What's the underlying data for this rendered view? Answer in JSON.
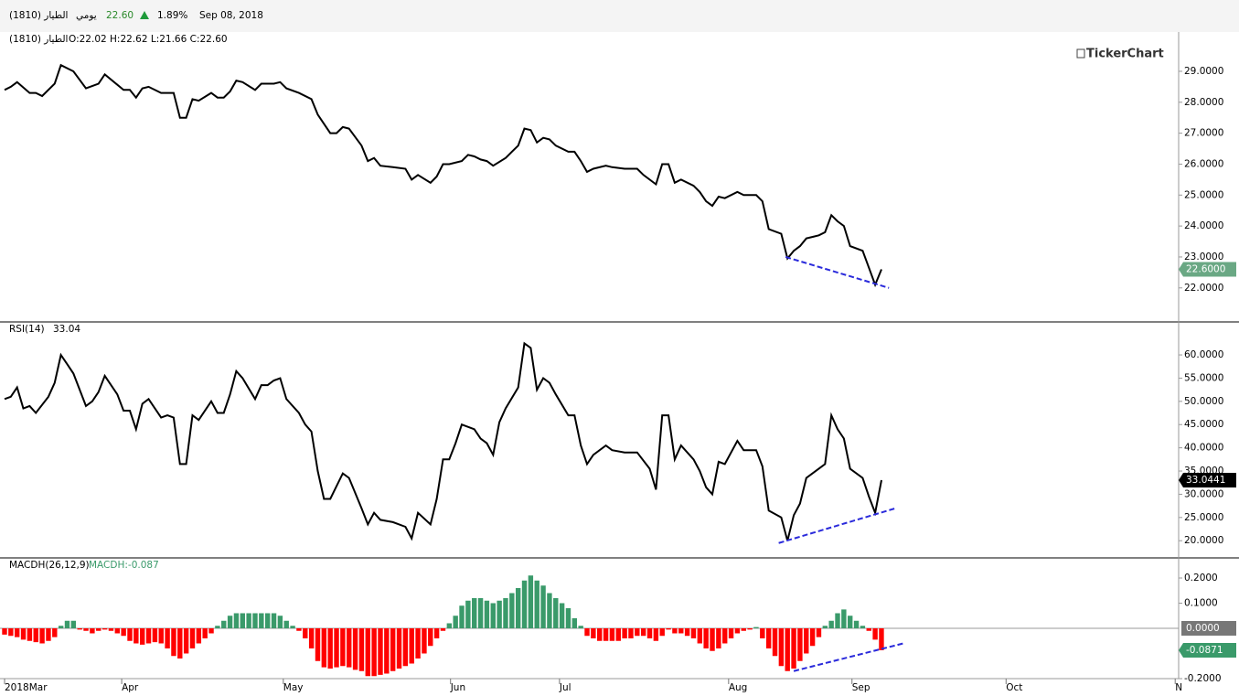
{
  "header": {
    "symbol": "الطيار (1810)",
    "period": "يومي",
    "last": "22.60",
    "change": "1.89%",
    "date": "Sep 08, 2018"
  },
  "watermark": "TickerChart",
  "chart_data": [
    {
      "type": "line",
      "title": "الطيار (1810)",
      "reading": "O:22.02 H:22.62 L:21.66 C:22.60",
      "x": [
        0,
        1,
        2,
        4,
        5,
        6,
        8,
        9,
        11,
        13,
        15,
        16,
        19,
        20,
        21,
        22,
        23,
        25,
        27,
        28,
        29,
        30,
        31,
        33,
        34,
        35,
        36,
        37,
        38,
        40,
        41,
        43,
        44,
        45,
        47,
        49,
        50,
        52,
        53,
        54,
        55,
        57,
        58,
        59,
        60,
        62,
        64,
        65,
        66,
        68,
        69,
        70,
        71,
        73,
        74,
        75,
        76,
        77,
        78,
        80,
        81,
        82,
        83,
        84,
        85,
        86,
        87,
        88,
        90,
        91,
        92,
        93,
        94,
        96,
        97,
        99,
        101,
        102,
        104,
        105,
        106,
        107,
        108,
        110,
        111,
        112,
        113,
        114,
        115,
        117,
        118,
        120,
        121,
        122,
        124,
        125,
        126,
        127,
        128,
        130,
        131,
        132,
        133,
        134,
        135,
        137,
        138,
        139,
        140
      ],
      "series": [
        {
          "color": "#000000",
          "values": [
            28.4,
            28.5,
            28.65,
            28.3,
            28.3,
            28.2,
            28.6,
            29.2,
            29.0,
            28.45,
            28.6,
            28.9,
            28.4,
            28.4,
            28.15,
            28.45,
            28.5,
            28.3,
            28.3,
            27.5,
            27.5,
            28.1,
            28.05,
            28.3,
            28.15,
            28.15,
            28.35,
            28.7,
            28.65,
            28.4,
            28.6,
            28.6,
            28.65,
            28.45,
            28.3,
            28.1,
            27.6,
            27.0,
            27.0,
            27.2,
            27.15,
            26.6,
            26.1,
            26.2,
            25.95,
            25.9,
            25.85,
            25.5,
            25.65,
            25.4,
            25.6,
            26.0,
            26.0,
            26.1,
            26.3,
            26.25,
            26.15,
            26.1,
            25.95,
            26.2,
            26.4,
            26.6,
            27.15,
            27.1,
            26.7,
            26.85,
            26.8,
            26.6,
            26.4,
            26.4,
            26.1,
            25.75,
            25.85,
            25.95,
            25.9,
            25.85,
            25.85,
            25.65,
            25.35,
            26.0,
            26.0,
            25.4,
            25.5,
            25.3,
            25.1,
            24.8,
            24.65,
            24.95,
            24.9,
            25.1,
            25.0,
            25.0,
            24.8,
            23.9,
            23.75,
            22.95,
            23.2,
            23.35,
            23.6,
            23.7,
            23.8,
            24.35,
            24.15,
            24.0,
            23.35,
            23.2,
            22.65,
            22.1,
            22.6
          ]
        }
      ],
      "last_label": "22.6000",
      "last_label_color": "#6aa884",
      "trendline": {
        "x": [
          124.7,
          141.2
        ],
        "values": [
          23.0,
          22.0
        ],
        "color": "#2a2adb"
      },
      "xlim": [
        0,
        187.6
      ],
      "ylim": [
        20.9,
        30.27
      ],
      "yticks": [
        {
          "value": 22,
          "label": "22.0000"
        },
        {
          "value": 23,
          "label": "23.0000"
        },
        {
          "value": 24,
          "label": "24.0000"
        },
        {
          "value": 25,
          "label": "25.0000"
        },
        {
          "value": 26,
          "label": "26.0000"
        },
        {
          "value": 27,
          "label": "27.0000"
        },
        {
          "value": 28,
          "label": "28.0000"
        },
        {
          "value": 29,
          "label": "29.0000"
        }
      ]
    },
    {
      "type": "line",
      "title": "RSI(14)",
      "reading": "33.04",
      "x": [
        0,
        1,
        2,
        3,
        4,
        5,
        7,
        8,
        9,
        10,
        11,
        13,
        14,
        15,
        16,
        18,
        19,
        20,
        21,
        22,
        23,
        25,
        26,
        27,
        28,
        29,
        30,
        31,
        33,
        34,
        35,
        36,
        37,
        38,
        40,
        41,
        42,
        43,
        44,
        45,
        47,
        48,
        49,
        50,
        51,
        52,
        54,
        55,
        57,
        58,
        59,
        60,
        62,
        64,
        65,
        66,
        68,
        69,
        70,
        71,
        72,
        73,
        75,
        76,
        77,
        78,
        79,
        80,
        82,
        83,
        84,
        85,
        86,
        87,
        88,
        90,
        91,
        92,
        93,
        94,
        96,
        97,
        99,
        101,
        103,
        104,
        105,
        106,
        107,
        108,
        110,
        111,
        112,
        113,
        114,
        115,
        117,
        118,
        120,
        121,
        122,
        124,
        125,
        126,
        127,
        128,
        129,
        131,
        132,
        133,
        134,
        135,
        137,
        138,
        139,
        140
      ],
      "series": [
        {
          "color": "#000000",
          "values": [
            50.5,
            51,
            53,
            48.5,
            49,
            47.5,
            51,
            54,
            60,
            58,
            56,
            49,
            50,
            52,
            55.5,
            51.5,
            48,
            48,
            44,
            49.5,
            50.5,
            46.5,
            47,
            46.5,
            36.5,
            36.5,
            47,
            46,
            50,
            47.5,
            47.5,
            51.5,
            56.5,
            55,
            50.5,
            53.5,
            53.5,
            54.5,
            55,
            50.5,
            47.5,
            45,
            43.5,
            35,
            29,
            29,
            34.5,
            33.5,
            27,
            23.5,
            26,
            24.5,
            24,
            23,
            20.5,
            26,
            23.5,
            29,
            37.5,
            37.5,
            41,
            45,
            44,
            42,
            41,
            38.5,
            45.5,
            48.5,
            53,
            62.5,
            61.5,
            52.5,
            55,
            54,
            51.5,
            47,
            47,
            40.5,
            36.5,
            38.5,
            40.5,
            39.5,
            39,
            39,
            35.5,
            31,
            47,
            47,
            37.5,
            40.5,
            37.5,
            35,
            31.5,
            30,
            37,
            36.5,
            41.5,
            39.5,
            39.5,
            36,
            26.5,
            25,
            20,
            25.5,
            28,
            33.5,
            34.5,
            36.5,
            47,
            44,
            42,
            35.5,
            33.5,
            29.5,
            26,
            33.0441
          ]
        }
      ],
      "last_label": "33.0441",
      "last_label_color": "#000000",
      "trendline": {
        "x": [
          123.6,
          142.3
        ],
        "values": [
          19.5,
          27
        ],
        "color": "#2a2adb"
      },
      "xlim": [
        0,
        187.6
      ],
      "ylim": [
        16.3,
        67.1
      ],
      "yticks": [
        {
          "value": 20,
          "label": "20.0000"
        },
        {
          "value": 25,
          "label": "25.0000"
        },
        {
          "value": 30,
          "label": "30.0000"
        },
        {
          "value": 35,
          "label": "35.0000"
        },
        {
          "value": 40,
          "label": "40.0000"
        },
        {
          "value": 45,
          "label": "45.0000"
        },
        {
          "value": 50,
          "label": "50.0000"
        },
        {
          "value": 55,
          "label": "55.0000"
        },
        {
          "value": 60,
          "label": "60.0000"
        }
      ]
    },
    {
      "type": "bar",
      "title": "MACDH(26,12,9)",
      "reading": "MACDH:-0.087",
      "reading_color": "#3a9a6a",
      "x": [
        0,
        1,
        2,
        3,
        4,
        5,
        6,
        7,
        8,
        9,
        10,
        11,
        12,
        13,
        14,
        15,
        16,
        17,
        18,
        19,
        20,
        21,
        22,
        23,
        24,
        25,
        26,
        27,
        28,
        29,
        30,
        31,
        32,
        33,
        34,
        35,
        36,
        37,
        38,
        39,
        40,
        41,
        42,
        43,
        44,
        45,
        46,
        47,
        48,
        49,
        50,
        51,
        52,
        53,
        54,
        55,
        56,
        57,
        58,
        59,
        60,
        61,
        62,
        63,
        64,
        65,
        66,
        67,
        68,
        69,
        70,
        71,
        72,
        73,
        74,
        75,
        76,
        77,
        78,
        79,
        80,
        81,
        82,
        83,
        84,
        85,
        86,
        87,
        88,
        89,
        90,
        91,
        92,
        93,
        94,
        95,
        96,
        97,
        98,
        99,
        100,
        101,
        102,
        103,
        104,
        105,
        106,
        107,
        108,
        109,
        110,
        111,
        112,
        113,
        114,
        115,
        116,
        117,
        118,
        119,
        120,
        121,
        122,
        123,
        124,
        125,
        126,
        127,
        128,
        129,
        130,
        131,
        132,
        133,
        134,
        135,
        136,
        137,
        138,
        139,
        140
      ],
      "series": [
        {
          "color_positive": "#3a9a6a",
          "color_negative": "#ff0000",
          "values": [
            -0.025,
            -0.03,
            -0.035,
            -0.045,
            -0.05,
            -0.055,
            -0.06,
            -0.05,
            -0.035,
            0.01,
            0.03,
            0.03,
            -0.005,
            -0.01,
            -0.02,
            -0.01,
            -0.005,
            -0.01,
            -0.02,
            -0.03,
            -0.05,
            -0.06,
            -0.065,
            -0.06,
            -0.055,
            -0.06,
            -0.08,
            -0.11,
            -0.12,
            -0.1,
            -0.08,
            -0.06,
            -0.04,
            -0.02,
            0.01,
            0.03,
            0.05,
            0.06,
            0.06,
            0.06,
            0.06,
            0.06,
            0.06,
            0.06,
            0.05,
            0.03,
            0.01,
            -0.01,
            -0.04,
            -0.08,
            -0.13,
            -0.155,
            -0.16,
            -0.155,
            -0.15,
            -0.155,
            -0.165,
            -0.17,
            -0.19,
            -0.19,
            -0.185,
            -0.18,
            -0.17,
            -0.16,
            -0.15,
            -0.14,
            -0.12,
            -0.1,
            -0.07,
            -0.04,
            -0.01,
            0.02,
            0.05,
            0.09,
            0.11,
            0.12,
            0.12,
            0.11,
            0.1,
            0.11,
            0.12,
            0.14,
            0.16,
            0.19,
            0.21,
            0.19,
            0.17,
            0.14,
            0.12,
            0.1,
            0.08,
            0.04,
            0.01,
            -0.03,
            -0.04,
            -0.05,
            -0.05,
            -0.05,
            -0.05,
            -0.04,
            -0.04,
            -0.03,
            -0.03,
            -0.04,
            -0.05,
            -0.03,
            -0.005,
            -0.02,
            -0.02,
            -0.03,
            -0.04,
            -0.06,
            -0.08,
            -0.09,
            -0.08,
            -0.06,
            -0.04,
            -0.02,
            -0.01,
            -0.005,
            0.005,
            -0.04,
            -0.08,
            -0.11,
            -0.15,
            -0.17,
            -0.16,
            -0.13,
            -0.1,
            -0.07,
            -0.035,
            0.01,
            0.03,
            0.06,
            0.075,
            0.05,
            0.03,
            0.01,
            -0.01,
            -0.045,
            -0.0871
          ]
        }
      ],
      "last_label": "-0.0871",
      "last_label_color": "#3a9a6a",
      "zero_label": {
        "value": 0,
        "label": "0.0000"
      },
      "zero_color": "#777777",
      "trendline": {
        "x": [
          126,
          143.5
        ],
        "values": [
          -0.17,
          -0.06
        ],
        "color": "#2a2adb"
      },
      "xlim": [
        0,
        187.6
      ],
      "ylim": [
        -0.2,
        0.28
      ],
      "yticks": [
        {
          "value": -0.2,
          "label": "-0.2000"
        },
        {
          "value": 0.1,
          "label": "0.1000"
        },
        {
          "value": 0.2,
          "label": "0.2000"
        }
      ],
      "xticks": [
        {
          "value": 0,
          "label": "2018Mar"
        },
        {
          "value": 18.7,
          "label": "Apr"
        },
        {
          "value": 44.5,
          "label": "May"
        },
        {
          "value": 71.2,
          "label": "Jun"
        },
        {
          "value": 88.6,
          "label": "Jul"
        },
        {
          "value": 115.6,
          "label": "Aug"
        },
        {
          "value": 135.3,
          "label": "Sep"
        },
        {
          "value": 159.9,
          "label": "Oct"
        },
        {
          "value": 186.9,
          "label": "N"
        }
      ]
    }
  ]
}
